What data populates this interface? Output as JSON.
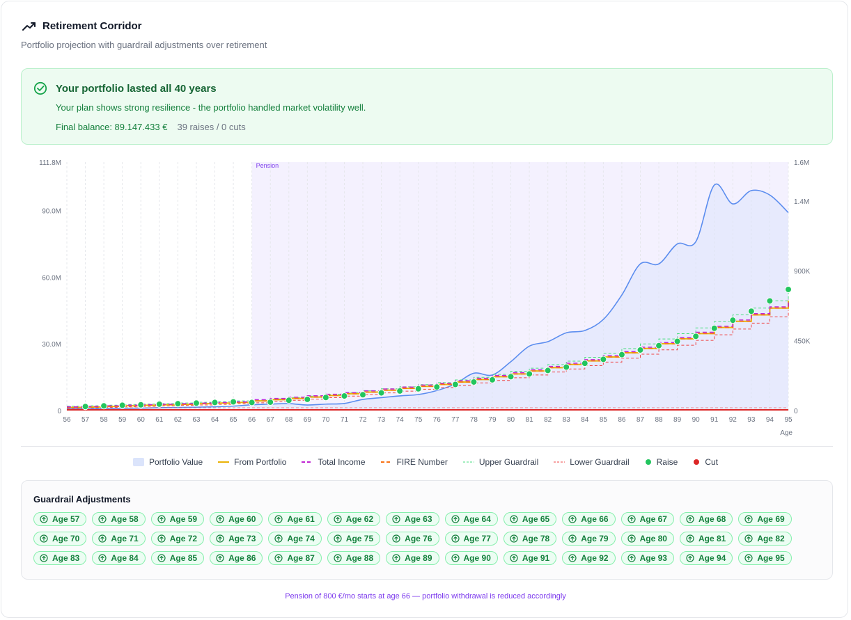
{
  "header": {
    "title": "Retirement Corridor",
    "subtitle": "Portfolio projection with guardrail adjustments over retirement"
  },
  "banner": {
    "title": "Your portfolio lasted all 40 years",
    "text": "Your plan shows strong resilience - the portfolio handled market volatility well.",
    "final_balance": "Final balance: 89.147.433 €",
    "raises_cuts": "39 raises / 0 cuts"
  },
  "colors": {
    "portfolio": "#5b8def",
    "from_portfolio": "#eab308",
    "total_income": "#c026d3",
    "fire": "#f97316",
    "upper": "#4ade80",
    "lower": "#ef4444",
    "raise": "#22c55e",
    "cut": "#dc2626",
    "pension": "#7c3aed"
  },
  "chart_data": {
    "type": "line",
    "xlabel": "Age",
    "pension_label": "Pension",
    "pension_start_age": 66,
    "x": [
      56,
      57,
      58,
      59,
      60,
      61,
      62,
      63,
      64,
      65,
      66,
      67,
      68,
      69,
      70,
      71,
      72,
      73,
      74,
      75,
      76,
      77,
      78,
      79,
      80,
      81,
      82,
      83,
      84,
      85,
      86,
      87,
      88,
      89,
      90,
      91,
      92,
      93,
      94,
      95
    ],
    "left_axis": {
      "ylim": [
        0,
        111.8
      ],
      "ticks": [
        "0",
        "30.0M",
        "60.0M",
        "90.0M",
        "111.8M"
      ],
      "tick_values": [
        0,
        30,
        60,
        90,
        111.8
      ],
      "unit": "M"
    },
    "right_axis": {
      "ylim": [
        0,
        1600
      ],
      "ticks": [
        "0",
        "450K",
        "900K",
        "1.4M",
        "1.6M"
      ],
      "tick_values": [
        0,
        450,
        900,
        1350,
        1600
      ],
      "unit": "K"
    },
    "series": [
      {
        "name": "Portfolio Value",
        "axis": "left",
        "values": [
          0.8,
          0.8,
          0.9,
          1.0,
          1.1,
          1.3,
          1.4,
          1.5,
          1.7,
          2.0,
          2.6,
          2.9,
          3.1,
          2.5,
          2.9,
          3.2,
          5.0,
          5.8,
          6.6,
          7.2,
          9.0,
          12.0,
          16.8,
          16.0,
          22.0,
          29.0,
          31.0,
          35.0,
          36.0,
          41.0,
          52.0,
          66.0,
          66.0,
          75.0,
          76.0,
          101.5,
          93.0,
          99.0,
          97.0,
          89.1
        ]
      },
      {
        "name": "From Portfolio",
        "axis": "right",
        "values": [
          20,
          23,
          27,
          31,
          34,
          37,
          40,
          44,
          48,
          52,
          62,
          70,
          78,
          87,
          97,
          108,
          119,
          131,
          143,
          156,
          168,
          184,
          200,
          218,
          236,
          255,
          276,
          297,
          320,
          345,
          372,
          400,
          430,
          462,
          496,
          535,
          575,
          616,
          660,
          708
        ]
      },
      {
        "name": "Total Income",
        "axis": "right",
        "values": [
          24,
          27,
          31,
          35,
          38,
          41,
          44,
          48,
          52,
          56,
          70,
          78,
          86,
          95,
          105,
          116,
          127,
          139,
          151,
          164,
          176,
          192,
          208,
          226,
          244,
          263,
          284,
          305,
          328,
          353,
          380,
          408,
          438,
          470,
          504,
          543,
          583,
          624,
          668,
          716
        ]
      },
      {
        "name": "FIRE Number",
        "axis": "right",
        "values": [
          20,
          23,
          27,
          31,
          34,
          37,
          40,
          44,
          48,
          52,
          62,
          70,
          78,
          87,
          97,
          108,
          119,
          131,
          143,
          156,
          168,
          184,
          200,
          218,
          236,
          255,
          276,
          297,
          320,
          345,
          372,
          400,
          430,
          462,
          496,
          535,
          575,
          616,
          660,
          708
        ]
      },
      {
        "name": "Upper Guardrail",
        "axis": "right",
        "values": [
          28,
          31,
          35,
          39,
          42,
          45,
          49,
          53,
          57,
          62,
          66,
          75,
          84,
          93,
          104,
          116,
          127,
          140,
          153,
          167,
          180,
          197,
          214,
          233,
          253,
          273,
          296,
          318,
          343,
          370,
          399,
          429,
          461,
          495,
          532,
          573,
          616,
          660,
          707,
          758
        ]
      },
      {
        "name": "Lower Guardrail",
        "axis": "right",
        "values": [
          15,
          18,
          21,
          24,
          27,
          30,
          33,
          36,
          40,
          44,
          50,
          58,
          66,
          74,
          83,
          93,
          103,
          114,
          125,
          137,
          148,
          163,
          178,
          194,
          211,
          229,
          248,
          268,
          289,
          312,
          337,
          363,
          391,
          421,
          452,
          488,
          525,
          563,
          604,
          649
        ]
      }
    ],
    "raises": {
      "name": "Raise",
      "axis": "right",
      "ages": [
        57,
        58,
        59,
        60,
        61,
        62,
        63,
        64,
        65,
        66,
        67,
        68,
        69,
        70,
        71,
        72,
        73,
        74,
        75,
        76,
        77,
        78,
        79,
        80,
        81,
        82,
        83,
        84,
        85,
        86,
        87,
        88,
        89,
        90,
        91,
        92,
        93,
        94,
        95
      ],
      "values": [
        26,
        30,
        34,
        37,
        41,
        44,
        48,
        52,
        56,
        52,
        54,
        66,
        72,
        84,
        94,
        102,
        114,
        126,
        140,
        152,
        168,
        184,
        198,
        218,
        236,
        258,
        280,
        304,
        330,
        360,
        390,
        418,
        446,
        478,
        530,
        582,
        640,
        706,
        780
      ]
    },
    "cuts": {
      "name": "Cut",
      "ages": []
    }
  },
  "legend": [
    {
      "label": "Portfolio Value",
      "key": "portfolio"
    },
    {
      "label": "From Portfolio",
      "key": "from_portfolio"
    },
    {
      "label": "Total Income",
      "key": "total_income"
    },
    {
      "label": "FIRE Number",
      "key": "fire"
    },
    {
      "label": "Upper Guardrail",
      "key": "upper"
    },
    {
      "label": "Lower Guardrail",
      "key": "lower"
    },
    {
      "label": "Raise",
      "key": "raise"
    },
    {
      "label": "Cut",
      "key": "cut"
    }
  ],
  "adjustments": {
    "title": "Guardrail Adjustments",
    "items": [
      "Age 57",
      "Age 58",
      "Age 59",
      "Age 60",
      "Age 61",
      "Age 62",
      "Age 63",
      "Age 64",
      "Age 65",
      "Age 66",
      "Age 67",
      "Age 68",
      "Age 69",
      "Age 70",
      "Age 71",
      "Age 72",
      "Age 73",
      "Age 74",
      "Age 75",
      "Age 76",
      "Age 77",
      "Age 78",
      "Age 79",
      "Age 80",
      "Age 81",
      "Age 82",
      "Age 83",
      "Age 84",
      "Age 85",
      "Age 86",
      "Age 87",
      "Age 88",
      "Age 89",
      "Age 90",
      "Age 91",
      "Age 92",
      "Age 93",
      "Age 94",
      "Age 95"
    ]
  },
  "footnote": "Pension of 800 €/mo starts at age 66 — portfolio withdrawal is reduced accordingly"
}
